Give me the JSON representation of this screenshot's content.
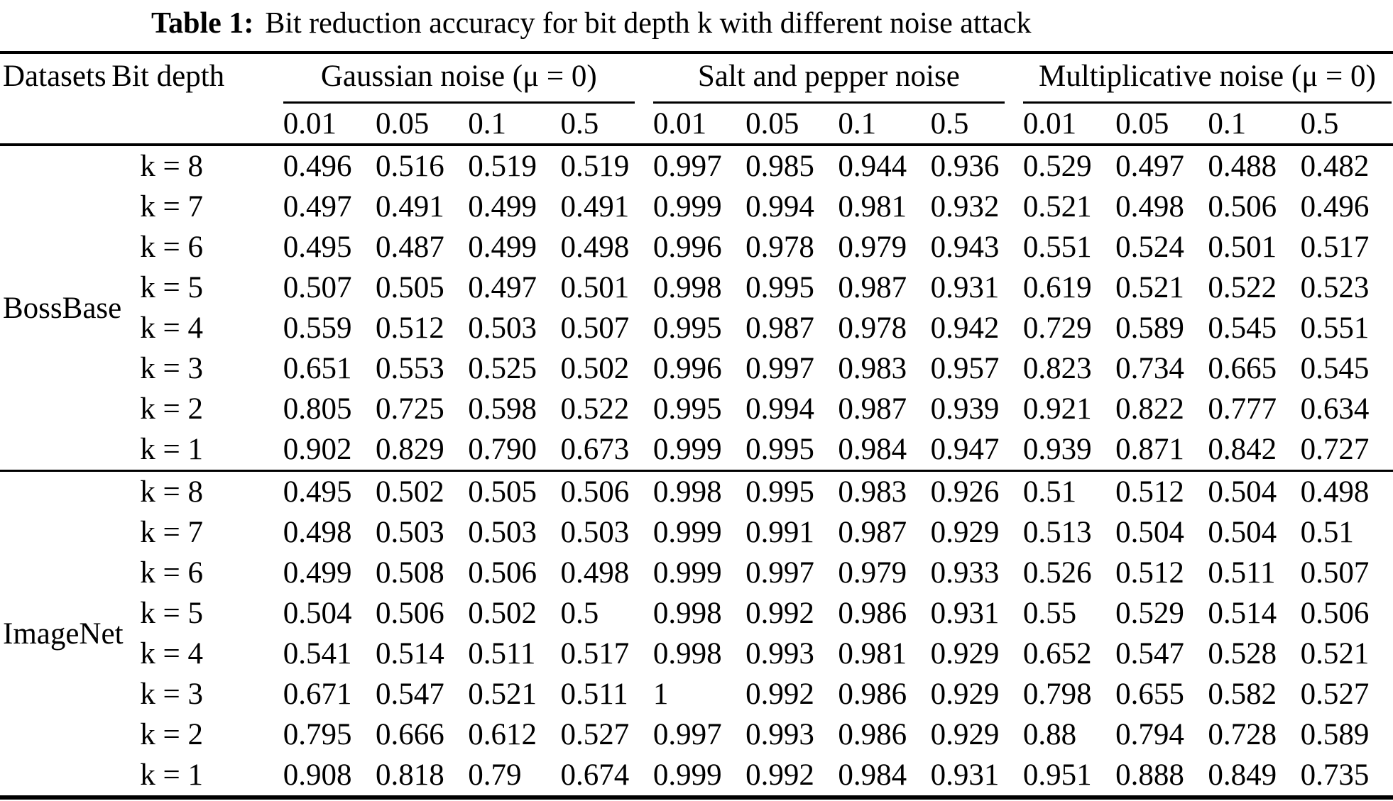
{
  "table": {
    "title_bold": "Table 1:",
    "title_rest": "Bit reduction accuracy for bit depth k with different noise attack",
    "col_headers": {
      "datasets": "Datasets",
      "bit_depth": "Bit depth"
    },
    "groups": [
      {
        "label": "Gaussian noise (μ = 0)",
        "sub": [
          "0.01",
          "0.05",
          "0.1",
          "0.5"
        ]
      },
      {
        "label": "Salt and pepper noise",
        "sub": [
          "0.01",
          "0.05",
          "0.1",
          "0.5"
        ]
      },
      {
        "label": "Multiplicative noise (μ = 0)",
        "sub": [
          "0.01",
          "0.05",
          "0.1",
          "0.5"
        ]
      }
    ],
    "sections": [
      {
        "dataset": "BossBase",
        "rows": [
          {
            "bit_depth": "k = 8",
            "values": [
              "0.496",
              "0.516",
              "0.519",
              "0.519",
              "0.997",
              "0.985",
              "0.944",
              "0.936",
              "0.529",
              "0.497",
              "0.488",
              "0.482"
            ]
          },
          {
            "bit_depth": "k = 7",
            "values": [
              "0.497",
              "0.491",
              "0.499",
              "0.491",
              "0.999",
              "0.994",
              "0.981",
              "0.932",
              "0.521",
              "0.498",
              "0.506",
              "0.496"
            ]
          },
          {
            "bit_depth": "k = 6",
            "values": [
              "0.495",
              "0.487",
              "0.499",
              "0.498",
              "0.996",
              "0.978",
              "0.979",
              "0.943",
              "0.551",
              "0.524",
              "0.501",
              "0.517"
            ]
          },
          {
            "bit_depth": "k = 5",
            "values": [
              "0.507",
              "0.505",
              "0.497",
              "0.501",
              "0.998",
              "0.995",
              "0.987",
              "0.931",
              "0.619",
              "0.521",
              "0.522",
              "0.523"
            ]
          },
          {
            "bit_depth": "k = 4",
            "values": [
              "0.559",
              "0.512",
              "0.503",
              "0.507",
              "0.995",
              "0.987",
              "0.978",
              "0.942",
              "0.729",
              "0.589",
              "0.545",
              "0.551"
            ]
          },
          {
            "bit_depth": "k = 3",
            "values": [
              "0.651",
              "0.553",
              "0.525",
              "0.502",
              "0.996",
              "0.997",
              "0.983",
              "0.957",
              "0.823",
              "0.734",
              "0.665",
              "0.545"
            ]
          },
          {
            "bit_depth": "k = 2",
            "values": [
              "0.805",
              "0.725",
              "0.598",
              "0.522",
              "0.995",
              "0.994",
              "0.987",
              "0.939",
              "0.921",
              "0.822",
              "0.777",
              "0.634"
            ]
          },
          {
            "bit_depth": "k = 1",
            "values": [
              "0.902",
              "0.829",
              "0.790",
              "0.673",
              "0.999",
              "0.995",
              "0.984",
              "0.947",
              "0.939",
              "0.871",
              "0.842",
              "0.727"
            ]
          }
        ]
      },
      {
        "dataset": "ImageNet",
        "rows": [
          {
            "bit_depth": "k = 8",
            "values": [
              "0.495",
              "0.502",
              "0.505",
              "0.506",
              "0.998",
              "0.995",
              "0.983",
              "0.926",
              "0.51",
              "0.512",
              "0.504",
              "0.498"
            ]
          },
          {
            "bit_depth": "k = 7",
            "values": [
              "0.498",
              "0.503",
              "0.503",
              "0.503",
              "0.999",
              "0.991",
              "0.987",
              "0.929",
              "0.513",
              "0.504",
              "0.504",
              "0.51"
            ]
          },
          {
            "bit_depth": "k = 6",
            "values": [
              "0.499",
              "0.508",
              "0.506",
              "0.498",
              "0.999",
              "0.997",
              "0.979",
              "0.933",
              "0.526",
              "0.512",
              "0.511",
              "0.507"
            ]
          },
          {
            "bit_depth": "k = 5",
            "values": [
              "0.504",
              "0.506",
              "0.502",
              "0.5",
              "0.998",
              "0.992",
              "0.986",
              "0.931",
              "0.55",
              "0.529",
              "0.514",
              "0.506"
            ]
          },
          {
            "bit_depth": "k = 4",
            "values": [
              "0.541",
              "0.514",
              "0.511",
              "0.517",
              "0.998",
              "0.993",
              "0.981",
              "0.929",
              "0.652",
              "0.547",
              "0.528",
              "0.521"
            ]
          },
          {
            "bit_depth": "k = 3",
            "values": [
              "0.671",
              "0.547",
              "0.521",
              "0.511",
              "1",
              "0.992",
              "0.986",
              "0.929",
              "0.798",
              "0.655",
              "0.582",
              "0.527"
            ]
          },
          {
            "bit_depth": "k = 2",
            "values": [
              "0.795",
              "0.666",
              "0.612",
              "0.527",
              "0.997",
              "0.993",
              "0.986",
              "0.929",
              "0.88",
              "0.794",
              "0.728",
              "0.589"
            ]
          },
          {
            "bit_depth": "k = 1",
            "values": [
              "0.908",
              "0.818",
              "0.79",
              "0.674",
              "0.999",
              "0.992",
              "0.984",
              "0.931",
              "0.951",
              "0.888",
              "0.849",
              "0.735"
            ]
          }
        ]
      }
    ]
  }
}
